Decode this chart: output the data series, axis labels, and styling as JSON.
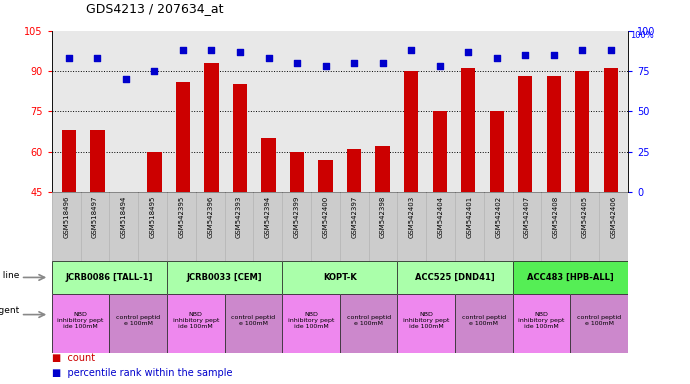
{
  "title": "GDS4213 / 207634_at",
  "samples": [
    "GSM518496",
    "GSM518497",
    "GSM518494",
    "GSM518495",
    "GSM542395",
    "GSM542396",
    "GSM542393",
    "GSM542394",
    "GSM542399",
    "GSM542400",
    "GSM542397",
    "GSM542398",
    "GSM542403",
    "GSM542404",
    "GSM542401",
    "GSM542402",
    "GSM542407",
    "GSM542408",
    "GSM542405",
    "GSM542406"
  ],
  "count_values": [
    68,
    68,
    45,
    60,
    86,
    93,
    85,
    65,
    60,
    57,
    61,
    62,
    90,
    75,
    91,
    75,
    88,
    88,
    90,
    91
  ],
  "percentile_values": [
    83,
    83,
    70,
    75,
    88,
    88,
    87,
    83,
    80,
    78,
    80,
    80,
    88,
    78,
    87,
    83,
    85,
    85,
    88,
    88
  ],
  "y_min": 45,
  "y_max": 105,
  "pct_min": 0,
  "pct_max": 100,
  "y_ticks_left": [
    45,
    60,
    75,
    90,
    105
  ],
  "y_ticks_right": [
    0,
    25,
    50,
    75,
    100
  ],
  "cell_lines": [
    {
      "label": "JCRB0086 [TALL-1]",
      "start": 0,
      "end": 4,
      "color": "#aaffaa"
    },
    {
      "label": "JCRB0033 [CEM]",
      "start": 4,
      "end": 8,
      "color": "#aaffaa"
    },
    {
      "label": "KOPT-K",
      "start": 8,
      "end": 12,
      "color": "#aaffaa"
    },
    {
      "label": "ACC525 [DND41]",
      "start": 12,
      "end": 16,
      "color": "#aaffaa"
    },
    {
      "label": "ACC483 [HPB-ALL]",
      "start": 16,
      "end": 20,
      "color": "#55ee55"
    }
  ],
  "agents": [
    {
      "label": "NBD\ninhibitory pept\nide 100mM",
      "start": 0,
      "end": 2,
      "color": "#ee88ee"
    },
    {
      "label": "control peptid\ne 100mM",
      "start": 2,
      "end": 4,
      "color": "#cc88cc"
    },
    {
      "label": "NBD\ninhibitory pept\nide 100mM",
      "start": 4,
      "end": 6,
      "color": "#ee88ee"
    },
    {
      "label": "control peptid\ne 100mM",
      "start": 6,
      "end": 8,
      "color": "#cc88cc"
    },
    {
      "label": "NBD\ninhibitory pept\nide 100mM",
      "start": 8,
      "end": 10,
      "color": "#ee88ee"
    },
    {
      "label": "control peptid\ne 100mM",
      "start": 10,
      "end": 12,
      "color": "#cc88cc"
    },
    {
      "label": "NBD\ninhibitory pept\nide 100mM",
      "start": 12,
      "end": 14,
      "color": "#ee88ee"
    },
    {
      "label": "control peptid\ne 100mM",
      "start": 14,
      "end": 16,
      "color": "#cc88cc"
    },
    {
      "label": "NBD\ninhibitory pept\nide 100mM",
      "start": 16,
      "end": 18,
      "color": "#ee88ee"
    },
    {
      "label": "control peptid\ne 100mM",
      "start": 18,
      "end": 20,
      "color": "#cc88cc"
    }
  ],
  "bar_color": "#cc0000",
  "dot_color": "#0000cc",
  "bar_width": 0.5,
  "dot_size": 25,
  "plot_bg_color": "#e8e8e8",
  "xtick_bg_color": "#cccccc",
  "grid_dotted_color": "#333333"
}
